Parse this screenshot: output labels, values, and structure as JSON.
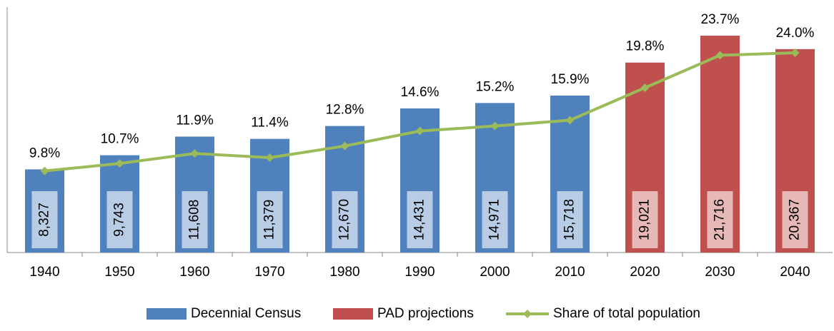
{
  "chart_data": {
    "type": "bar",
    "categories": [
      "1940",
      "1950",
      "1960",
      "1970",
      "1980",
      "1990",
      "2000",
      "2010",
      "2020",
      "2030",
      "2040"
    ],
    "ylim": [
      0,
      25000
    ],
    "y2lim": [
      0,
      30
    ],
    "series": [
      {
        "name": "Decennial Census",
        "color": "#4f81bd",
        "values": [
          8327,
          9743,
          11608,
          11379,
          12670,
          14431,
          14971,
          15718,
          null,
          null,
          null
        ],
        "value_labels": [
          "8,327",
          "9,743",
          "11,608",
          "11,379",
          "12,670",
          "14,431",
          "14,971",
          "15,718",
          null,
          null,
          null
        ]
      },
      {
        "name": "PAD projections",
        "color": "#c0504d",
        "values": [
          null,
          null,
          null,
          null,
          null,
          null,
          null,
          null,
          19021,
          21716,
          20367
        ],
        "value_labels": [
          null,
          null,
          null,
          null,
          null,
          null,
          null,
          null,
          "19,021",
          "21,716",
          "20,367"
        ]
      },
      {
        "name": "Share of total population",
        "color": "#9bbb59",
        "type": "line",
        "axis": "y2",
        "values": [
          9.8,
          10.7,
          11.9,
          11.4,
          12.8,
          14.6,
          15.2,
          15.9,
          19.8,
          23.7,
          24.0
        ],
        "value_labels": [
          "9.8%",
          "10.7%",
          "11.9%",
          "11.4%",
          "12.8%",
          "14.6%",
          "15.2%",
          "15.9%",
          "19.8%",
          "23.7%",
          "24.0%"
        ]
      }
    ]
  }
}
